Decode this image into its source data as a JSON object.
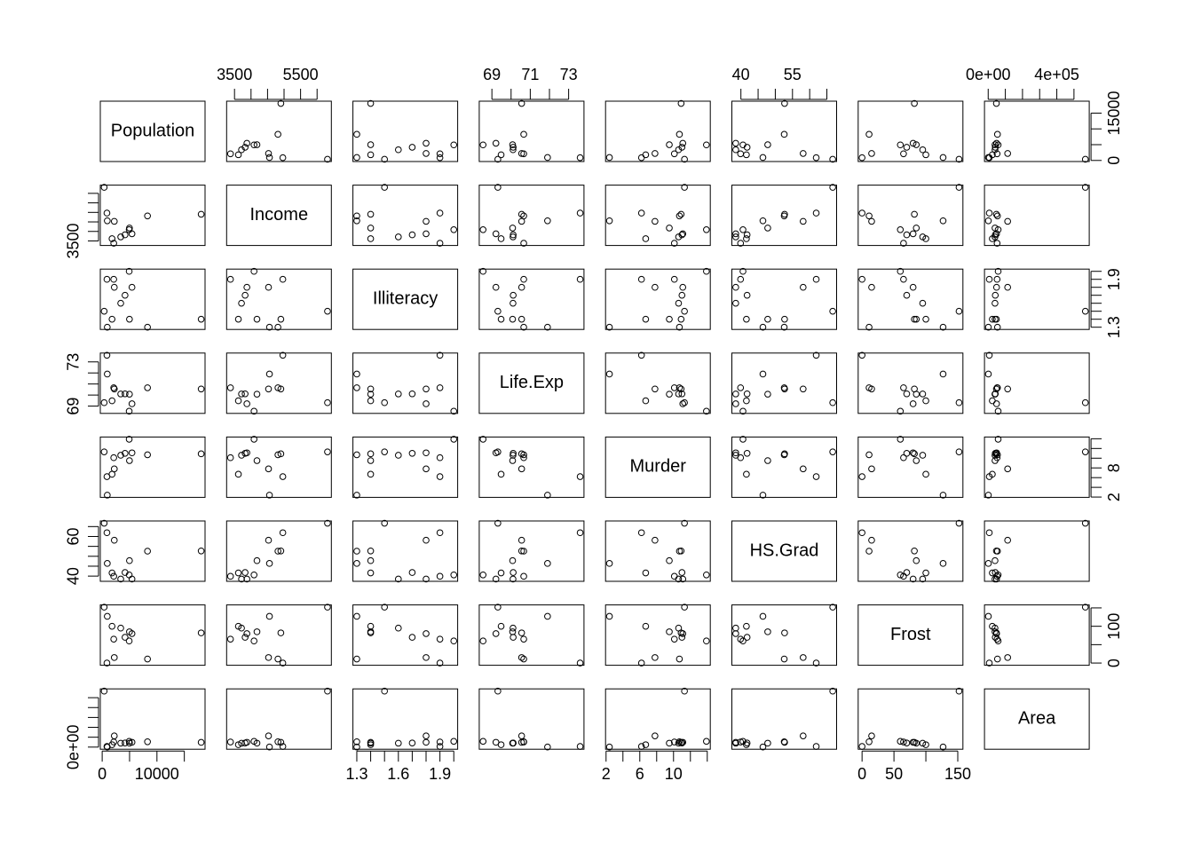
{
  "chart_data": {
    "type": "scatter-matrix",
    "variables": [
      {
        "name": "Population",
        "values": [
          365,
          2212,
          2110,
          8277,
          4931,
          868,
          3387,
          18076,
          5441,
          931,
          4173,
          4981,
          1799
        ],
        "lim": [
          -343,
          18784
        ],
        "ticks": [
          0,
          5000,
          10000,
          15000
        ],
        "x_tick_labels": [
          0,
          10000
        ],
        "y_tick_labels": [
          0,
          15000
        ]
      },
      {
        "name": "Income",
        "values": [
          6315,
          4530,
          3378,
          4815,
          4091,
          4963,
          3712,
          4903,
          3875,
          4558,
          3821,
          4180,
          3617
        ],
        "lim": [
          3261,
          6432
        ],
        "ticks": [
          3500,
          4000,
          4500,
          5000,
          5500,
          6000
        ],
        "x_tick_labels": [
          3500,
          5500
        ],
        "y_tick_labels": [
          3500
        ]
      },
      {
        "name": "Illiteracy",
        "values": [
          1.5,
          1.8,
          1.9,
          1.3,
          2.0,
          1.9,
          1.6,
          1.4,
          1.8,
          1.3,
          1.7,
          1.4,
          1.4
        ],
        "lim": [
          1.272,
          2.028
        ],
        "ticks": [
          1.3,
          1.4,
          1.5,
          1.6,
          1.7,
          1.8,
          1.9,
          2.0
        ],
        "x_tick_labels": [
          1.3,
          1.6,
          1.9
        ],
        "y_tick_labels": [
          1.3,
          1.9
        ]
      },
      {
        "name": "Life.Exp",
        "values": [
          69.31,
          70.55,
          70.66,
          70.66,
          68.54,
          73.6,
          70.1,
          70.55,
          69.21,
          71.9,
          70.11,
          70.08,
          69.48
        ],
        "lim": [
          68.34,
          73.8
        ],
        "ticks": [
          69,
          70,
          71,
          72,
          73
        ],
        "x_tick_labels": [
          69,
          71,
          73
        ],
        "y_tick_labels": [
          69,
          73
        ]
      },
      {
        "name": "Murder",
        "values": [
          11.3,
          7.8,
          10.1,
          10.7,
          13.9,
          6.2,
          10.6,
          10.9,
          11.1,
          2.4,
          11.0,
          9.5,
          6.7
        ],
        "lim": [
          1.94,
          14.36
        ],
        "ticks": [
          2,
          4,
          6,
          8,
          10,
          12,
          14
        ],
        "x_tick_labels": [
          2,
          6,
          10
        ],
        "y_tick_labels": [
          2,
          8
        ]
      },
      {
        "name": "HS.Grad",
        "values": [
          66.7,
          58.1,
          39.9,
          52.6,
          40.6,
          61.9,
          38.5,
          52.7,
          38.5,
          46.4,
          41.8,
          47.8,
          41.6
        ],
        "lim": [
          37.37,
          67.83
        ],
        "ticks": [
          40,
          45,
          50,
          55,
          60,
          65
        ],
        "x_tick_labels": [
          40,
          55
        ],
        "y_tick_labels": [
          40,
          60
        ]
      },
      {
        "name": "Frost",
        "values": [
          152,
          15,
          65,
          11,
          60,
          0,
          95,
          82,
          80,
          127,
          70,
          85,
          100
        ],
        "lim": [
          -6.08,
          158.08
        ],
        "ticks": [
          0,
          50,
          100,
          150
        ],
        "x_tick_labels": [
          0,
          50,
          150
        ],
        "y_tick_labels": [
          0,
          100
        ]
      },
      {
        "name": "Area",
        "values": [
          566432,
          113417,
          51945,
          54090,
          58073,
          6425,
          39650,
          47831,
          48798,
          1049,
          41328,
          39780,
          24070
        ],
        "lim": [
          -21566,
          589047
        ],
        "ticks": [
          0,
          100000,
          200000,
          300000,
          400000,
          500000
        ],
        "x_tick_labels": [
          {
            "value": 0,
            "label": "0e+00"
          },
          {
            "value": 400000,
            "label": "4e+05"
          }
        ],
        "y_tick_labels": [
          {
            "value": 0,
            "label": "0e+00"
          }
        ]
      }
    ]
  }
}
